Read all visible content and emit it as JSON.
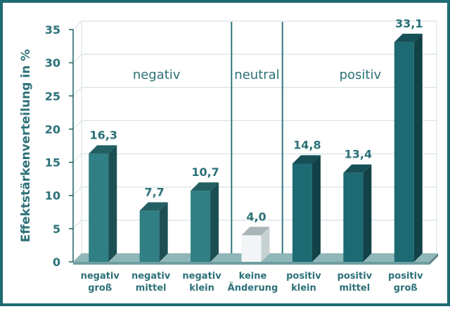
{
  "chart_data": {
    "type": "bar",
    "categories": [
      [
        "negativ",
        "groß"
      ],
      [
        "negativ",
        "mittel"
      ],
      [
        "negativ",
        "klein"
      ],
      [
        "keine",
        "Änderung"
      ],
      [
        "positiv",
        "klein"
      ],
      [
        "positiv",
        "mittel"
      ],
      [
        "positiv",
        "groß"
      ]
    ],
    "values": [
      16.3,
      7.7,
      10.7,
      4.0,
      14.8,
      13.4,
      33.1
    ],
    "value_labels": [
      "16,3",
      "7,7",
      "10,7",
      "4,0",
      "14,8",
      "13,4",
      "33,1"
    ],
    "title": "",
    "xlabel": "",
    "ylabel": "Effektstärkenverteilung in %",
    "ylim": [
      0,
      35
    ],
    "yticks": [
      0,
      5,
      10,
      15,
      20,
      25,
      30,
      35
    ],
    "grid": true,
    "groups": [
      {
        "label": "negativ",
        "categories": [
          0,
          1,
          2
        ]
      },
      {
        "label": "neutral",
        "categories": [
          3
        ]
      },
      {
        "label": "positiv",
        "categories": [
          4,
          5,
          6
        ]
      }
    ],
    "colors": {
      "negative": "#2f7f84",
      "neutral": "#f2f5f5",
      "positive": "#1d6a72",
      "text": "#2c7178",
      "frame": "#1e6b73",
      "grid": "#d6e2e3"
    }
  }
}
